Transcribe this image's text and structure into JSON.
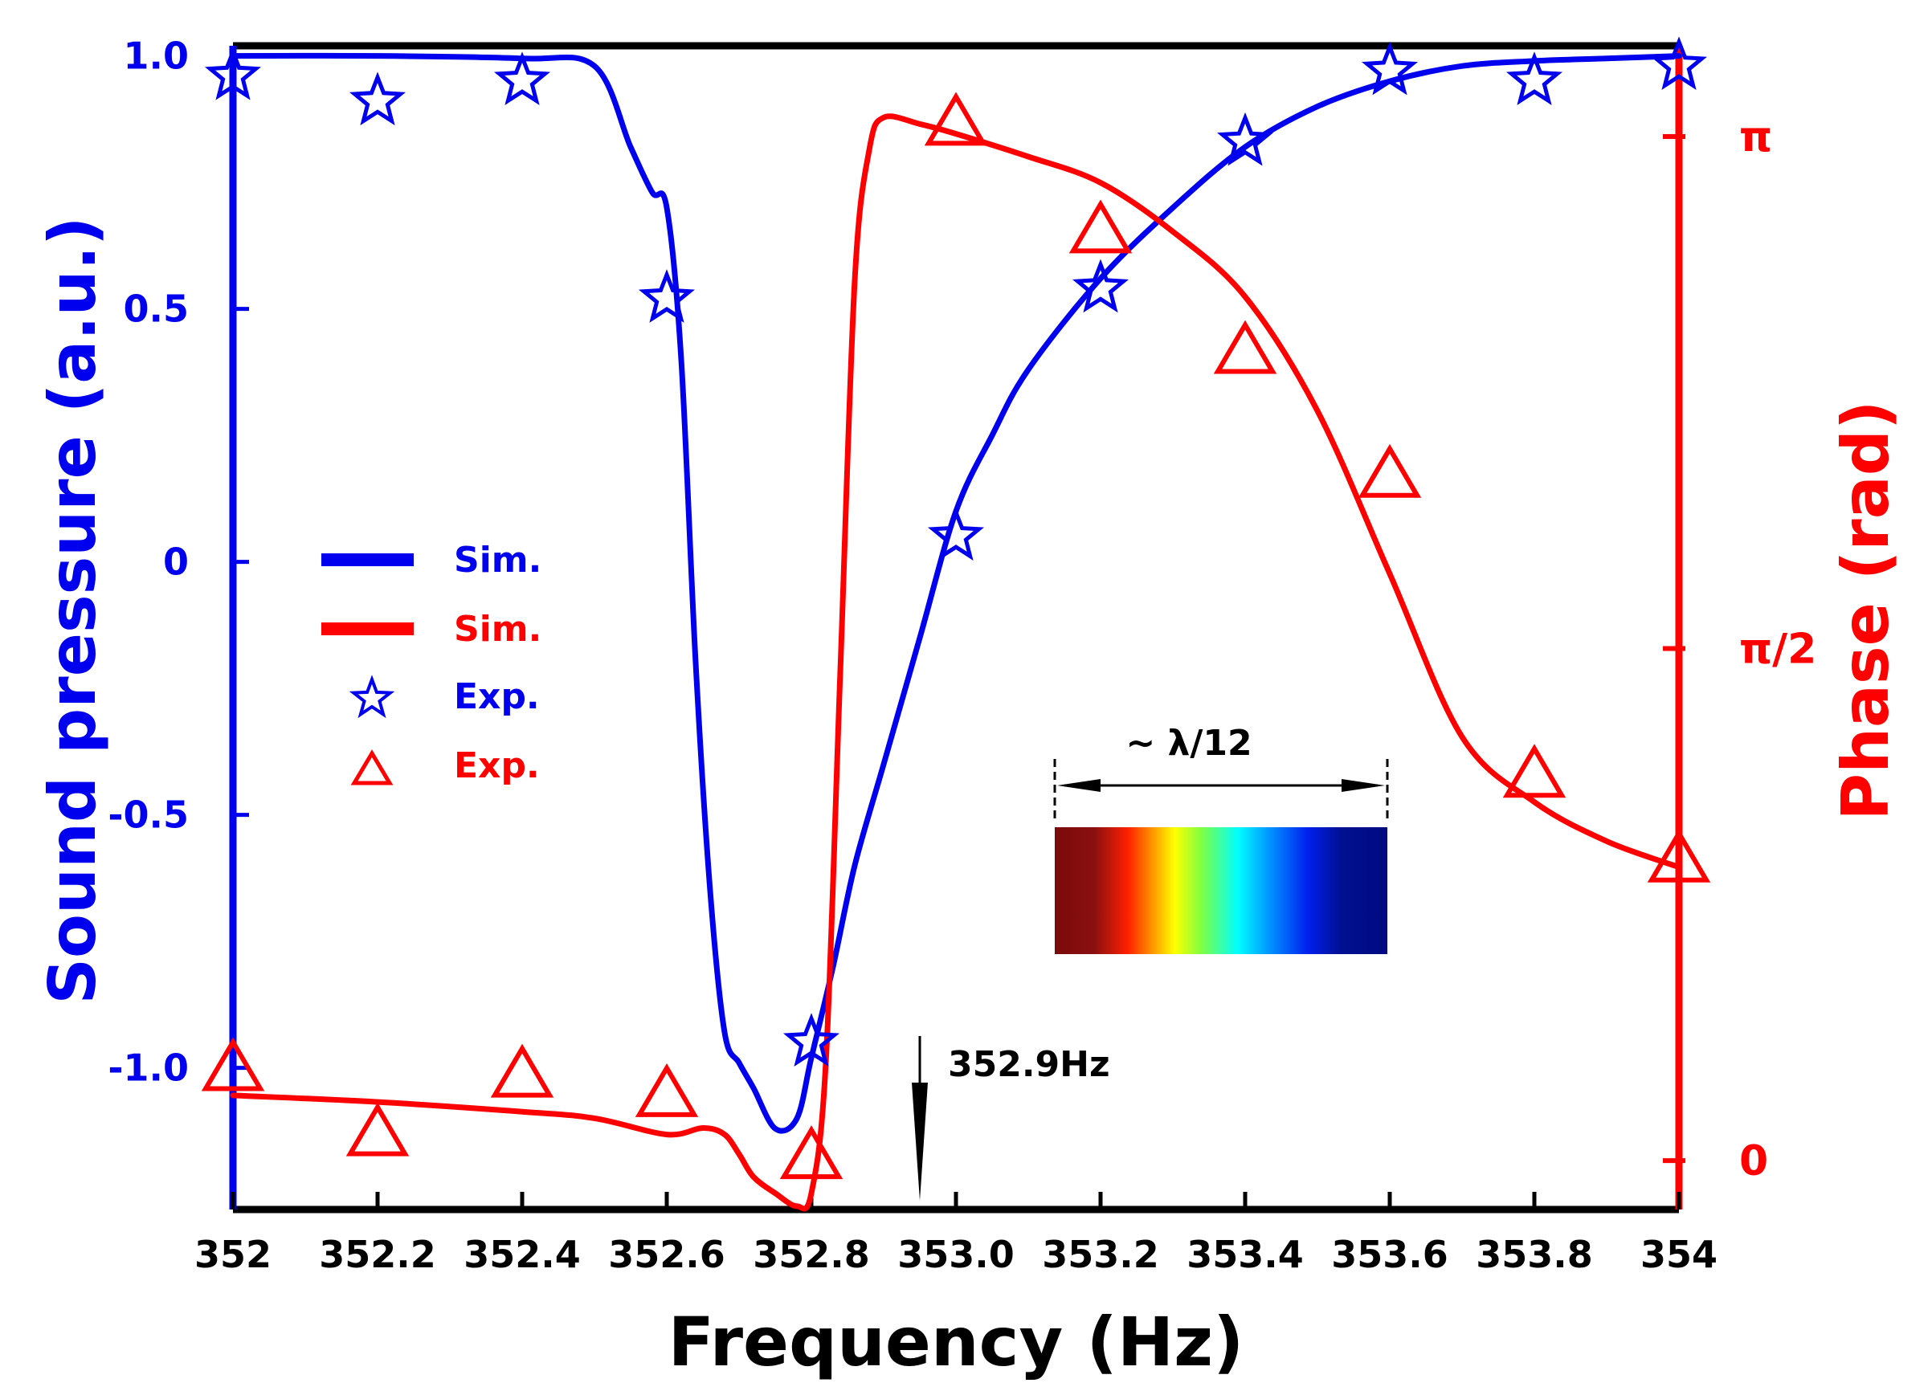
{
  "chart_data": {
    "type": "line",
    "title": "",
    "xlabel": "Frequency (Hz)",
    "ylabel_left": "Sound pressure (a.u.)",
    "ylabel_right": "Phase (rad)",
    "xlim": [
      352,
      354
    ],
    "ylim_left": [
      -1.28,
      1.02
    ],
    "ylim_right": [
      -0.15,
      3.42
    ],
    "x_ticks": [
      352,
      352.2,
      352.4,
      352.6,
      352.8,
      353.0,
      353.2,
      353.4,
      353.6,
      353.8,
      354
    ],
    "x_tick_labels": [
      "352",
      "352.2",
      "352.4",
      "352.6",
      "352.8",
      "353.0",
      "353.2",
      "353.4",
      "353.6",
      "353.8",
      "354"
    ],
    "y_left_ticks": [
      1.0,
      0.5,
      0,
      -0.5,
      -1.0
    ],
    "y_left_tick_labels": [
      "1.0",
      "0.5",
      "0",
      "-0.5",
      "-1.0"
    ],
    "y_right_ticks": [
      3.14159,
      1.5708,
      0
    ],
    "y_right_tick_labels": [
      "π",
      "π/2",
      "0"
    ],
    "colors": {
      "amplitude": "#0000ee",
      "phase": "#ff0000",
      "axis": "#000000"
    },
    "series": [
      {
        "name": "Sim.",
        "kind": "line",
        "axis": "left",
        "color": "#0000ee",
        "x": [
          352.0,
          352.2,
          352.4,
          352.5,
          352.55,
          352.58,
          352.6,
          352.62,
          352.64,
          352.66,
          352.68,
          352.7,
          352.72,
          352.75,
          352.78,
          352.8,
          352.83,
          352.86,
          352.9,
          352.95,
          353.0,
          353.05,
          353.1,
          353.2,
          353.3,
          353.4,
          353.5,
          353.6,
          353.7,
          353.8,
          353.9,
          354.0
        ],
        "values": [
          1.0,
          1.0,
          0.995,
          0.98,
          0.82,
          0.73,
          0.7,
          0.4,
          -0.2,
          -0.65,
          -0.93,
          -0.99,
          -1.04,
          -1.12,
          -1.1,
          -0.98,
          -0.8,
          -0.6,
          -0.4,
          -0.15,
          0.1,
          0.25,
          0.38,
          0.56,
          0.7,
          0.82,
          0.9,
          0.95,
          0.98,
          0.99,
          0.995,
          1.0
        ]
      },
      {
        "name": "Sim.",
        "kind": "line",
        "axis": "right",
        "color": "#ff0000",
        "x": [
          352.0,
          352.2,
          352.4,
          352.5,
          352.6,
          352.65,
          352.68,
          352.7,
          352.72,
          352.75,
          352.78,
          352.8,
          352.82,
          352.84,
          352.86,
          352.88,
          352.9,
          352.95,
          353.0,
          353.1,
          353.2,
          353.3,
          353.4,
          353.5,
          353.6,
          353.7,
          353.8,
          353.9,
          354.0
        ],
        "values": [
          0.2,
          0.18,
          0.15,
          0.13,
          0.08,
          0.1,
          0.08,
          0.02,
          -0.05,
          -0.1,
          -0.14,
          -0.1,
          0.3,
          1.5,
          2.7,
          3.1,
          3.2,
          3.18,
          3.15,
          3.08,
          3.0,
          2.85,
          2.65,
          2.3,
          1.8,
          1.3,
          1.1,
          0.98,
          0.9
        ]
      },
      {
        "name": "Exp.",
        "kind": "scatter",
        "marker": "star",
        "axis": "left",
        "color": "#0000ee",
        "x": [
          352.0,
          352.2,
          352.4,
          352.6,
          352.8,
          353.0,
          353.2,
          353.4,
          353.6,
          353.8,
          354.0
        ],
        "values": [
          0.96,
          0.91,
          0.95,
          0.52,
          -0.95,
          0.05,
          0.54,
          0.83,
          0.97,
          0.95,
          0.98
        ]
      },
      {
        "name": "Exp.",
        "kind": "scatter",
        "marker": "triangle",
        "axis": "right",
        "color": "#ff0000",
        "x": [
          352.0,
          352.2,
          352.4,
          352.6,
          352.8,
          353.0,
          353.2,
          353.4,
          353.6,
          353.8,
          354.0
        ],
        "values": [
          0.28,
          0.08,
          0.26,
          0.2,
          0.01,
          3.18,
          2.85,
          2.48,
          2.1,
          1.18,
          0.92
        ]
      }
    ],
    "legend": {
      "position": "center-left",
      "entries": [
        "Sim.",
        "Sim.",
        "Exp.",
        "Exp."
      ]
    },
    "annotations": {
      "marker_label": "352.9Hz",
      "marker_x": 352.95,
      "inset_label": "~ λ/12"
    }
  }
}
